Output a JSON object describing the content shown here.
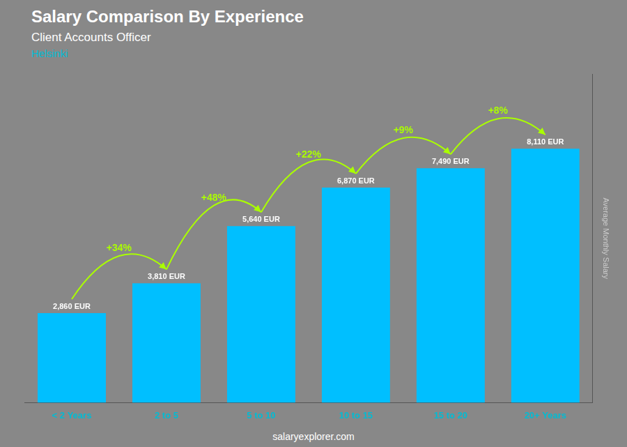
{
  "chart_data": {
    "type": "bar",
    "title": "Salary Comparison By Experience",
    "subtitle": "Client Accounts Officer",
    "annotations": [
      "Helsinki",
      "salaryexplorer.com"
    ],
    "ylabel": "Average Monthly Salary",
    "categories": [
      "< 2 Years",
      "2 to 5",
      "5 to 10",
      "10 to 15",
      "15 to 20",
      "20+ Years"
    ],
    "values": [
      2860,
      3810,
      5640,
      6870,
      7490,
      8110
    ],
    "value_labels": [
      "2,860 EUR",
      "3,810 EUR",
      "5,640 EUR",
      "6,870 EUR",
      "7,490 EUR",
      "8,110 EUR"
    ],
    "data_labels": true,
    "change_labels": [
      "+34%",
      "+48%",
      "+22%",
      "+9%",
      "+8%"
    ],
    "color": "#00bfff",
    "ylim": [
      0,
      10500
    ],
    "tick_labels": "x",
    "grid": false,
    "legend": false
  }
}
